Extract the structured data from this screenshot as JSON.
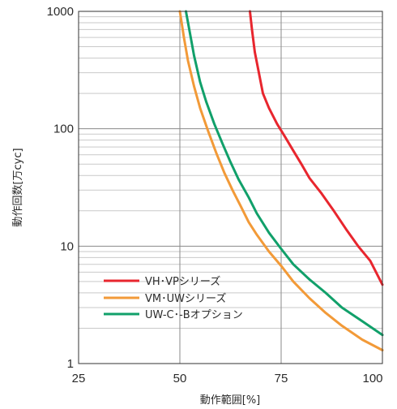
{
  "chart_data": {
    "type": "line",
    "xlabel": "動作範囲[%]",
    "ylabel": "動作回数[万cyc]",
    "xlim": [
      25,
      100
    ],
    "ylim": [
      1,
      1000
    ],
    "yscale": "log",
    "x_ticks": [
      "25",
      "50",
      "75",
      "100"
    ],
    "y_ticks": [
      "1",
      "10",
      "100",
      "1000"
    ],
    "grid": true,
    "legend_position": "bottom-left",
    "series": [
      {
        "name": "VH･VPシリーズ",
        "color": "#e8262e",
        "points": [
          [
            67.3,
            1000
          ],
          [
            67.8,
            700
          ],
          [
            68.5,
            450
          ],
          [
            69.5,
            300
          ],
          [
            70.5,
            200
          ],
          [
            72,
            150
          ],
          [
            74,
            110
          ],
          [
            76,
            85
          ],
          [
            78,
            65
          ],
          [
            80,
            50
          ],
          [
            82,
            38
          ],
          [
            85,
            28
          ],
          [
            88,
            20
          ],
          [
            91,
            14
          ],
          [
            94,
            10
          ],
          [
            97,
            7.5
          ],
          [
            100,
            4.7
          ]
        ]
      },
      {
        "name": "VM･UWシリーズ",
        "color": "#f29a38",
        "points": [
          [
            50,
            1000
          ],
          [
            51,
            600
          ],
          [
            52,
            380
          ],
          [
            53.5,
            230
          ],
          [
            55,
            150
          ],
          [
            57,
            95
          ],
          [
            59,
            62
          ],
          [
            61,
            42
          ],
          [
            63,
            30
          ],
          [
            65,
            22
          ],
          [
            67,
            16
          ],
          [
            69,
            12.5
          ],
          [
            72,
            9
          ],
          [
            75,
            6.8
          ],
          [
            78,
            5
          ],
          [
            82,
            3.6
          ],
          [
            86,
            2.7
          ],
          [
            90,
            2.1
          ],
          [
            95,
            1.6
          ],
          [
            100,
            1.3
          ]
        ]
      },
      {
        "name": "UW-C･-Bオプション",
        "color": "#11a06a",
        "points": [
          [
            51.5,
            1000
          ],
          [
            52.5,
            650
          ],
          [
            53.5,
            420
          ],
          [
            55,
            250
          ],
          [
            56.5,
            170
          ],
          [
            58.5,
            110
          ],
          [
            60.5,
            75
          ],
          [
            62.5,
            52
          ],
          [
            64.5,
            37
          ],
          [
            67,
            26
          ],
          [
            69,
            19
          ],
          [
            72,
            13
          ],
          [
            75,
            9.5
          ],
          [
            78,
            7
          ],
          [
            82,
            5.2
          ],
          [
            86,
            4
          ],
          [
            90,
            3
          ],
          [
            95,
            2.3
          ],
          [
            100,
            1.75
          ]
        ]
      }
    ]
  }
}
